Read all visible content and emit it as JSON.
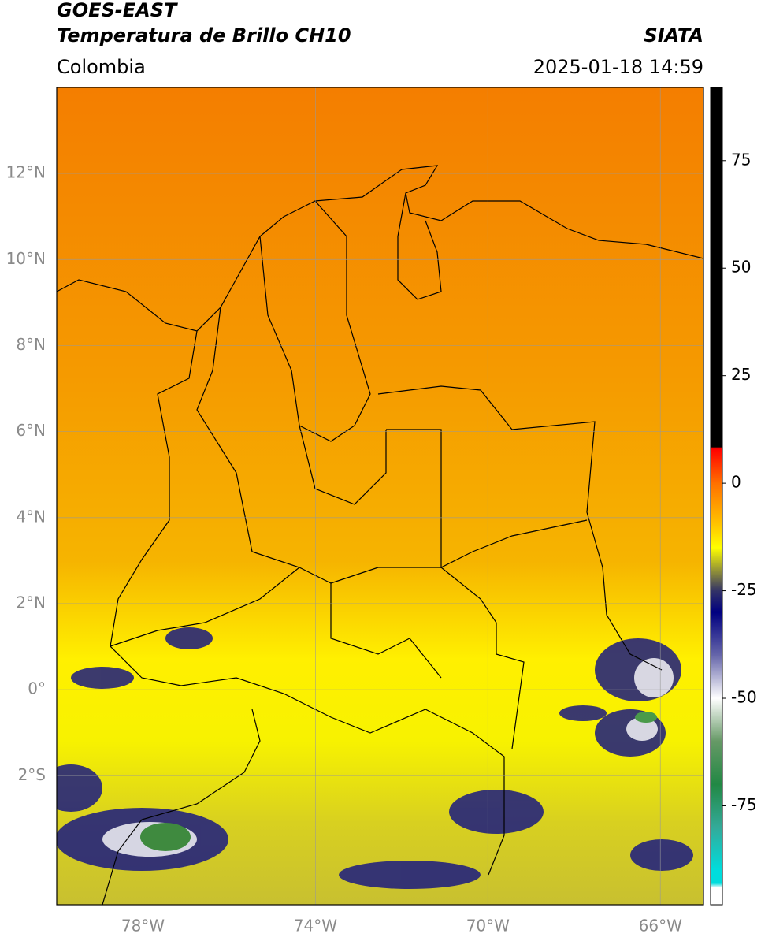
{
  "header": {
    "title": "GOES-EAST",
    "subtitle": "Temperatura de Brillo CH10",
    "source": "SIATA",
    "region": "Colombia",
    "datetime": "2025-01-18 14:59"
  },
  "map": {
    "xlim": [
      -80,
      -65
    ],
    "ylim": [
      -5,
      14
    ],
    "grid": true,
    "xticks": [
      {
        "value": -78,
        "label": "78°W"
      },
      {
        "value": -74,
        "label": "74°W"
      },
      {
        "value": -70,
        "label": "70°W"
      },
      {
        "value": -66,
        "label": "66°W"
      }
    ],
    "yticks": [
      {
        "value": 12,
        "label": "12°N"
      },
      {
        "value": 10,
        "label": "10°N"
      },
      {
        "value": 8,
        "label": "8°N"
      },
      {
        "value": 6,
        "label": "6°N"
      },
      {
        "value": 4,
        "label": "4°N"
      },
      {
        "value": 2,
        "label": "2°N"
      },
      {
        "value": 0,
        "label": "0°"
      },
      {
        "value": -2,
        "label": "2°S"
      }
    ]
  },
  "colorbar": {
    "lim": [
      -98,
      92
    ],
    "ticks": [
      75,
      50,
      25,
      0,
      -25,
      -50,
      -75
    ],
    "stops": [
      {
        "value": 92,
        "color": "#000000"
      },
      {
        "value": 8.5,
        "color": "#000000"
      },
      {
        "value": 8,
        "color": "#ff0000"
      },
      {
        "value": 0,
        "color": "#ff7000"
      },
      {
        "value": -10,
        "color": "#ffc800"
      },
      {
        "value": -15,
        "color": "#ffff00"
      },
      {
        "value": -20,
        "color": "#999933"
      },
      {
        "value": -25,
        "color": "#333366"
      },
      {
        "value": -30,
        "color": "#000080"
      },
      {
        "value": -40,
        "color": "#6666aa"
      },
      {
        "value": -50,
        "color": "#ffffff"
      },
      {
        "value": -60,
        "color": "#669966"
      },
      {
        "value": -70,
        "color": "#228844"
      },
      {
        "value": -80,
        "color": "#33aa99"
      },
      {
        "value": -90,
        "color": "#00dddd"
      },
      {
        "value": -93,
        "color": "#00dddd"
      },
      {
        "value": -94,
        "color": "#ffffff"
      },
      {
        "value": -98,
        "color": "#ffffff"
      }
    ]
  }
}
